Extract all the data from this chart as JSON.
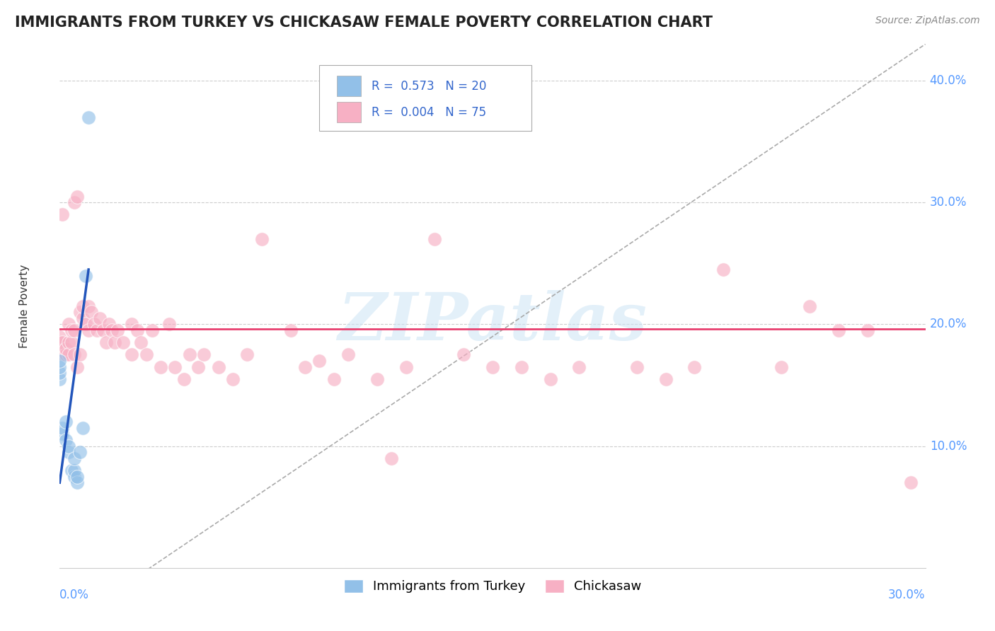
{
  "title": "IMMIGRANTS FROM TURKEY VS CHICKASAW FEMALE POVERTY CORRELATION CHART",
  "source": "Source: ZipAtlas.com",
  "ylabel": "Female Poverty",
  "ytick_values": [
    0.1,
    0.2,
    0.3,
    0.4
  ],
  "ytick_labels": [
    "10.0%",
    "20.0%",
    "30.0%",
    "40.0%"
  ],
  "xlim": [
    0.0,
    0.3
  ],
  "ylim": [
    0.0,
    0.43
  ],
  "blue_color": "#92c0e8",
  "pink_color": "#f7b0c4",
  "trend_blue_color": "#2255bb",
  "trend_pink_color": "#e84070",
  "dashed_line_color": "#aaaaaa",
  "watermark": "ZIPatlas",
  "turkey_points_x": [
    0.0,
    0.0,
    0.0,
    0.0,
    0.001,
    0.001,
    0.002,
    0.002,
    0.003,
    0.003,
    0.004,
    0.005,
    0.005,
    0.005,
    0.006,
    0.006,
    0.007,
    0.008,
    0.009,
    0.01
  ],
  "turkey_points_y": [
    0.155,
    0.16,
    0.165,
    0.17,
    0.11,
    0.115,
    0.105,
    0.12,
    0.095,
    0.1,
    0.08,
    0.075,
    0.08,
    0.09,
    0.07,
    0.075,
    0.095,
    0.115,
    0.24,
    0.37
  ],
  "chickasaw_points_x": [
    0.0,
    0.0,
    0.001,
    0.001,
    0.001,
    0.002,
    0.002,
    0.003,
    0.003,
    0.003,
    0.004,
    0.004,
    0.005,
    0.005,
    0.005,
    0.006,
    0.006,
    0.007,
    0.007,
    0.008,
    0.008,
    0.009,
    0.01,
    0.01,
    0.011,
    0.012,
    0.013,
    0.014,
    0.015,
    0.016,
    0.017,
    0.018,
    0.019,
    0.02,
    0.022,
    0.025,
    0.025,
    0.027,
    0.028,
    0.03,
    0.032,
    0.035,
    0.038,
    0.04,
    0.043,
    0.045,
    0.048,
    0.05,
    0.055,
    0.06,
    0.065,
    0.07,
    0.08,
    0.085,
    0.09,
    0.095,
    0.1,
    0.11,
    0.115,
    0.12,
    0.13,
    0.14,
    0.15,
    0.16,
    0.17,
    0.18,
    0.2,
    0.21,
    0.22,
    0.23,
    0.25,
    0.26,
    0.27,
    0.28,
    0.295
  ],
  "chickasaw_points_y": [
    0.185,
    0.19,
    0.175,
    0.185,
    0.29,
    0.175,
    0.18,
    0.185,
    0.175,
    0.2,
    0.185,
    0.195,
    0.195,
    0.175,
    0.3,
    0.305,
    0.165,
    0.175,
    0.21,
    0.205,
    0.215,
    0.2,
    0.195,
    0.215,
    0.21,
    0.2,
    0.195,
    0.205,
    0.195,
    0.185,
    0.2,
    0.195,
    0.185,
    0.195,
    0.185,
    0.175,
    0.2,
    0.195,
    0.185,
    0.175,
    0.195,
    0.165,
    0.2,
    0.165,
    0.155,
    0.175,
    0.165,
    0.175,
    0.165,
    0.155,
    0.175,
    0.27,
    0.195,
    0.165,
    0.17,
    0.155,
    0.175,
    0.155,
    0.09,
    0.165,
    0.27,
    0.175,
    0.165,
    0.165,
    0.155,
    0.165,
    0.165,
    0.155,
    0.165,
    0.245,
    0.165,
    0.215,
    0.195,
    0.195,
    0.07
  ]
}
